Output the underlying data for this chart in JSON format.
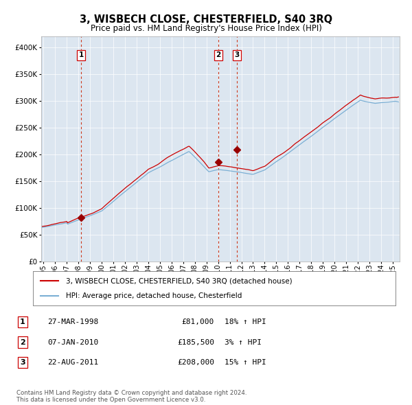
{
  "title": "3, WISBECH CLOSE, CHESTERFIELD, S40 3RQ",
  "subtitle": "Price paid vs. HM Land Registry's House Price Index (HPI)",
  "background_color": "#dce6f0",
  "plot_bg_color": "#dce6f0",
  "hpi_line_color": "#7bafd4",
  "price_line_color": "#cc0000",
  "marker_color": "#990000",
  "vline_color": "#cc2200",
  "ylim": [
    0,
    420000
  ],
  "yticks": [
    0,
    50000,
    100000,
    150000,
    200000,
    250000,
    300000,
    350000,
    400000
  ],
  "legend_entries": [
    "3, WISBECH CLOSE, CHESTERFIELD, S40 3RQ (detached house)",
    "HPI: Average price, detached house, Chesterfield"
  ],
  "transactions": [
    {
      "label": "1",
      "date_str": "27-MAR-1998",
      "year": 1998.22,
      "price": 81000,
      "hpi_pct": "18% ↑ HPI"
    },
    {
      "label": "2",
      "date_str": "07-JAN-2010",
      "year": 2010.02,
      "price": 185500,
      "hpi_pct": "3% ↑ HPI"
    },
    {
      "label": "3",
      "date_str": "22-AUG-2011",
      "year": 2011.63,
      "price": 208000,
      "hpi_pct": "15% ↑ HPI"
    }
  ],
  "footnote": "Contains HM Land Registry data © Crown copyright and database right 2024.\nThis data is licensed under the Open Government Licence v3.0.",
  "xlim_start": 1994.8,
  "xlim_end": 2025.6,
  "xtick_start": 1995,
  "xtick_end": 2025
}
